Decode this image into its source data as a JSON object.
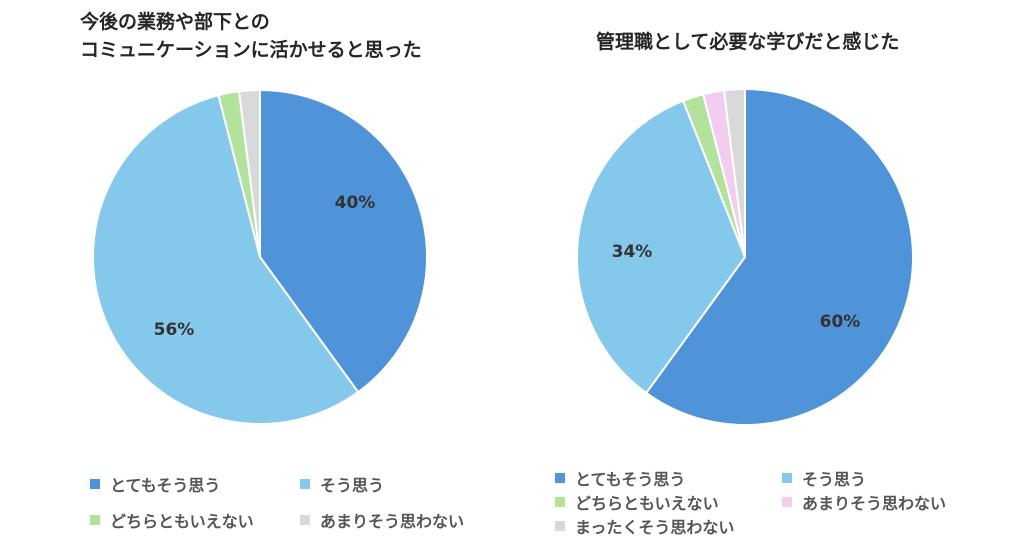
{
  "chart_data": [
    {
      "type": "pie",
      "title": "今後の業務や部下との\nコミュニケーションに活かせると思った",
      "categories": [
        "とてもそう思う",
        "そう思う",
        "どちらともいえない",
        "あまりそう思わない"
      ],
      "values": [
        40,
        56,
        2,
        2
      ],
      "labels": [
        "40%",
        "56%",
        "",
        ""
      ],
      "colors": [
        "#4f93d9",
        "#84c8eb",
        "#b3e29d",
        "#d9d9d9"
      ],
      "start": "12 o'clock",
      "direction": "clockwise",
      "legend_position": "bottom"
    },
    {
      "type": "pie",
      "title": "管理職として必要な学びだと感じた",
      "categories": [
        "とてもそう思う",
        "そう思う",
        "どちらともいえない",
        "あまりそう思わない",
        "まったくそう思わない"
      ],
      "values": [
        60,
        34,
        2,
        2,
        2
      ],
      "labels": [
        "60%",
        "34%",
        "",
        "",
        ""
      ],
      "colors": [
        "#4f93d9",
        "#84c8eb",
        "#b3e29d",
        "#f2cdef",
        "#d9d9d9"
      ],
      "start": "12 o'clock",
      "direction": "clockwise",
      "legend_position": "bottom"
    }
  ]
}
